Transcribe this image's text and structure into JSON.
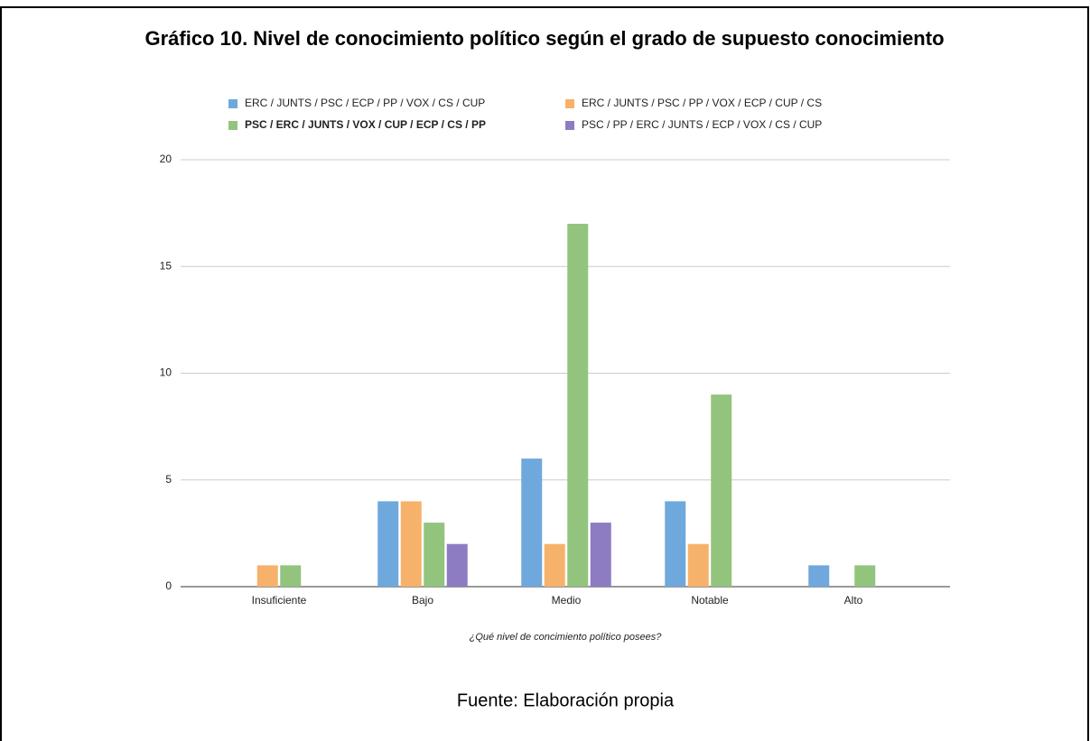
{
  "chart_data": {
    "type": "bar",
    "title": "Gráfico 10. Nivel de conocimiento político según el grado de supuesto conocimiento",
    "categories": [
      "Insuficiente",
      "Bajo",
      "Medio",
      "Notable",
      "Alto"
    ],
    "series": [
      {
        "name": "ERC / JUNTS / PSC / ECP / PP / VOX / CS / CUP",
        "color": "#6fa8dc",
        "values": [
          0,
          4,
          6,
          4,
          1
        ]
      },
      {
        "name": "ERC / JUNTS / PSC / PP / VOX / ECP / CUP / CS",
        "color": "#f6b26b",
        "values": [
          1,
          4,
          2,
          2,
          0
        ]
      },
      {
        "name": "PSC / ERC / JUNTS / VOX / CUP / ECP / CS / PP",
        "color": "#93c47d",
        "values": [
          1,
          3,
          17,
          9,
          1
        ]
      },
      {
        "name": "PSC / PP / ERC / JUNTS / ECP / VOX / CS / CUP",
        "color": "#8e7cc3",
        "values": [
          0,
          2,
          3,
          0,
          0
        ]
      }
    ],
    "x_label": "¿Qué nivel de concimiento político posees?",
    "ylim": [
      0,
      20
    ],
    "yticks": [
      0,
      5,
      10,
      15,
      20
    ],
    "grid": true,
    "source": "Fuente: Elaboración propia"
  }
}
